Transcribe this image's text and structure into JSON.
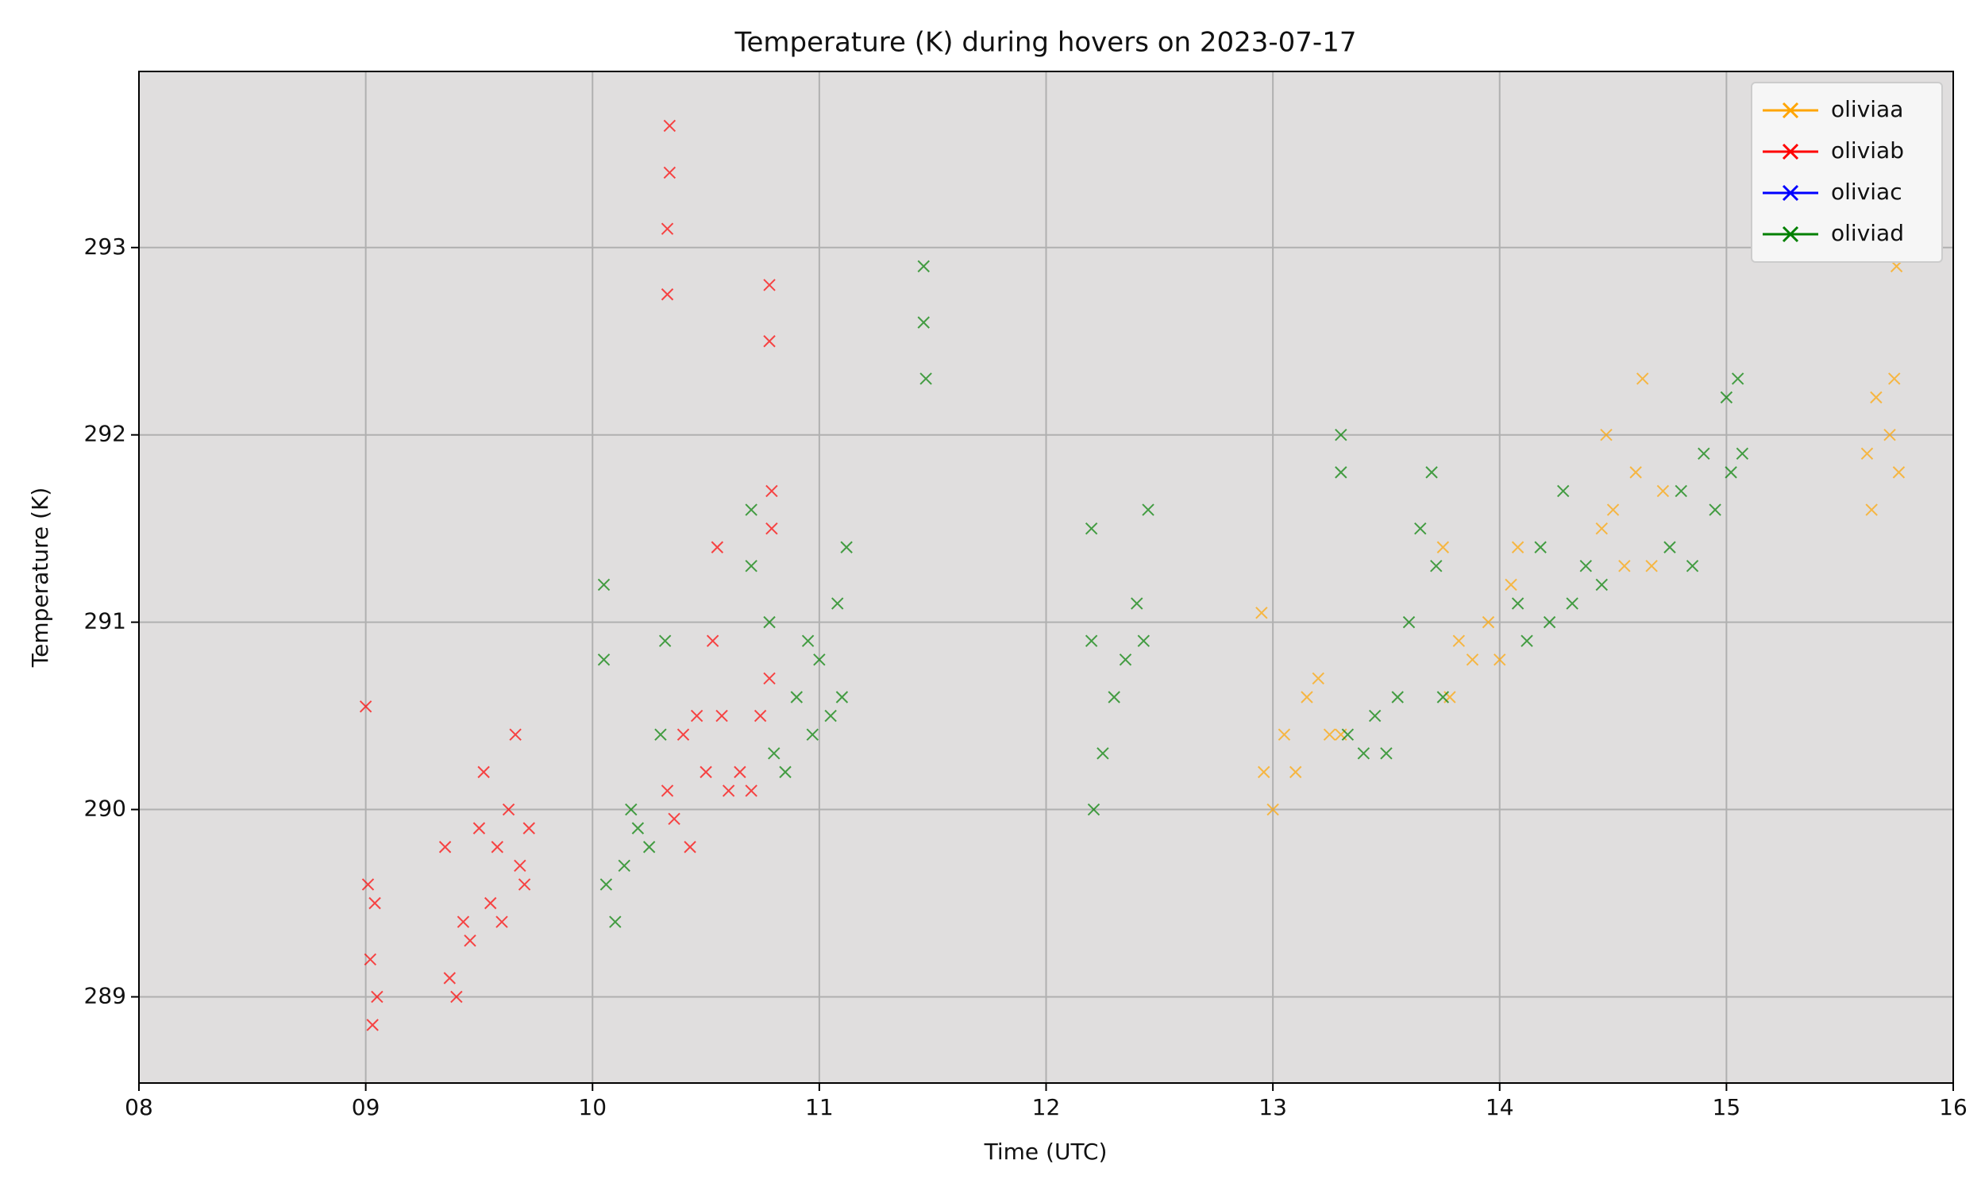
{
  "chart_data": {
    "type": "scatter",
    "title": "Temperature (K) during hovers on 2023-07-17",
    "x_label": "Time (UTC)",
    "y_label": "Temperature (K)",
    "xlim": [
      8,
      16
    ],
    "xticks": [
      {
        "value": 8,
        "label": "08"
      },
      {
        "value": 9,
        "label": "09"
      },
      10,
      11,
      12,
      13,
      14,
      15,
      16
    ],
    "ylim": [
      288.54,
      293.94
    ],
    "yticks": [
      289,
      290,
      291,
      292,
      293
    ],
    "grid": true,
    "legend": "upper right",
    "marker": "x",
    "series": [
      {
        "name": "oliviaa",
        "color": "orange",
        "x": [
          12.95,
          12.96,
          13.0,
          13.05,
          13.1,
          13.15,
          13.2,
          13.25,
          13.3,
          13.75,
          13.78,
          13.82,
          13.88,
          13.95,
          14.0,
          14.05,
          14.08,
          14.45,
          14.47,
          14.5,
          14.55,
          14.6,
          14.63,
          14.67,
          14.72,
          15.62,
          15.64,
          15.66,
          15.72,
          15.74,
          15.76,
          15.75
        ],
        "values": [
          291.05,
          290.2,
          290.0,
          290.4,
          290.2,
          290.6,
          290.7,
          290.4,
          290.4,
          291.4,
          290.6,
          290.9,
          290.8,
          291.0,
          290.8,
          291.2,
          291.4,
          291.5,
          292.0,
          291.6,
          291.3,
          291.8,
          292.3,
          291.3,
          291.7,
          291.9,
          291.6,
          292.2,
          292.0,
          292.3,
          291.8,
          292.9
        ]
      },
      {
        "name": "oliviab",
        "color": "red",
        "x": [
          9.0,
          9.01,
          9.02,
          9.03,
          9.04,
          9.05,
          9.35,
          9.37,
          9.4,
          9.43,
          9.46,
          9.5,
          9.52,
          9.55,
          9.58,
          9.6,
          9.63,
          9.66,
          9.68,
          9.7,
          9.72,
          10.33,
          10.33,
          10.34,
          10.34,
          10.33,
          10.36,
          10.4,
          10.43,
          10.46,
          10.5,
          10.53,
          10.55,
          10.57,
          10.6,
          10.65,
          10.7,
          10.74,
          10.78,
          10.78,
          10.78,
          10.79,
          10.79
        ],
        "values": [
          290.55,
          289.6,
          289.2,
          288.85,
          289.5,
          289.0,
          289.8,
          289.1,
          289.0,
          289.4,
          289.3,
          289.9,
          290.2,
          289.5,
          289.8,
          289.4,
          290.0,
          290.4,
          289.7,
          289.6,
          289.9,
          292.75,
          293.1,
          293.4,
          293.65,
          290.1,
          289.95,
          290.4,
          289.8,
          290.5,
          290.2,
          290.9,
          291.4,
          290.5,
          290.1,
          290.2,
          290.1,
          290.5,
          290.7,
          292.5,
          292.8,
          291.5,
          291.7
        ]
      },
      {
        "name": "oliviac",
        "color": "blue",
        "x": [],
        "values": []
      },
      {
        "name": "oliviad",
        "color": "green",
        "x": [
          10.05,
          10.05,
          10.06,
          10.1,
          10.14,
          10.17,
          10.2,
          10.25,
          10.3,
          10.32,
          10.7,
          10.7,
          10.78,
          10.8,
          10.85,
          10.9,
          10.95,
          10.97,
          11.0,
          11.05,
          11.08,
          11.1,
          11.12,
          11.46,
          11.46,
          11.47,
          12.2,
          12.2,
          12.21,
          12.25,
          12.3,
          12.35,
          12.4,
          12.43,
          12.45,
          13.3,
          13.3,
          13.33,
          13.4,
          13.45,
          13.5,
          13.55,
          13.6,
          13.65,
          13.7,
          13.72,
          13.75,
          14.08,
          14.12,
          14.18,
          14.22,
          14.28,
          14.32,
          14.38,
          14.45,
          14.75,
          14.8,
          14.85,
          14.9,
          14.95,
          15.0,
          15.02,
          15.05,
          15.07
        ],
        "values": [
          291.2,
          290.8,
          289.6,
          289.4,
          289.7,
          290.0,
          289.9,
          289.8,
          290.4,
          290.9,
          291.6,
          291.3,
          291.0,
          290.3,
          290.2,
          290.6,
          290.9,
          290.4,
          290.8,
          290.5,
          291.1,
          290.6,
          291.4,
          292.9,
          292.6,
          292.3,
          291.5,
          290.9,
          290.0,
          290.3,
          290.6,
          290.8,
          291.1,
          290.9,
          291.6,
          292.0,
          291.8,
          290.4,
          290.3,
          290.5,
          290.3,
          290.6,
          291.0,
          291.5,
          291.8,
          291.3,
          290.6,
          291.1,
          290.9,
          291.4,
          291.0,
          291.7,
          291.1,
          291.3,
          291.2,
          291.4,
          291.7,
          291.3,
          291.9,
          291.6,
          292.2,
          291.8,
          292.3,
          291.9
        ]
      }
    ]
  }
}
